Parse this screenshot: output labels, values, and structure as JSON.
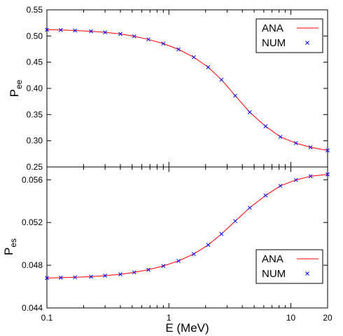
{
  "chart_data": [
    {
      "type": "line",
      "title": "",
      "xlabel": "",
      "ylabel": "P",
      "ylabel_sub": "ee",
      "xscale": "log",
      "xlim": [
        0.1,
        20
      ],
      "ylim": [
        0.25,
        0.55
      ],
      "yticks": [
        0.25,
        0.3,
        0.35,
        0.4,
        0.45,
        0.5,
        0.55
      ],
      "ytick_labels": [
        "0.25",
        "0.30",
        "0.35",
        "0.40",
        "0.45",
        "0.50",
        "0.55"
      ],
      "xticks": [
        0.1,
        1,
        10,
        20
      ],
      "xtick_labels": [],
      "grid": false,
      "legend_position": "top-right",
      "series": [
        {
          "name": "ANA",
          "style": "line",
          "color": "#ff0000",
          "x": [
            0.1,
            0.13,
            0.17,
            0.23,
            0.3,
            0.4,
            0.52,
            0.68,
            0.9,
            1.2,
            1.6,
            2.1,
            2.7,
            3.5,
            4.6,
            6.2,
            8.2,
            11,
            14.5,
            20
          ],
          "y": [
            0.512,
            0.5115,
            0.5105,
            0.509,
            0.507,
            0.504,
            0.4995,
            0.4935,
            0.4855,
            0.4745,
            0.4595,
            0.4405,
            0.4165,
            0.386,
            0.3545,
            0.3275,
            0.3075,
            0.2955,
            0.2875,
            0.2815
          ]
        },
        {
          "name": "NUM",
          "style": "markers",
          "marker": "x",
          "color": "#0000ff",
          "x": [
            0.1,
            0.13,
            0.17,
            0.23,
            0.3,
            0.4,
            0.52,
            0.68,
            0.9,
            1.2,
            1.6,
            2.1,
            2.7,
            3.5,
            4.6,
            6.2,
            8.2,
            11,
            14.5,
            20
          ],
          "y": [
            0.512,
            0.5115,
            0.5105,
            0.509,
            0.507,
            0.504,
            0.4995,
            0.4935,
            0.4855,
            0.4745,
            0.4595,
            0.4405,
            0.4165,
            0.386,
            0.3545,
            0.3275,
            0.3075,
            0.2955,
            0.2875,
            0.2815
          ]
        }
      ]
    },
    {
      "type": "line",
      "title": "",
      "xlabel": "E (MeV)",
      "ylabel": "P",
      "ylabel_sub": "es",
      "xscale": "log",
      "xlim": [
        0.1,
        20
      ],
      "ylim": [
        0.044,
        0.0572
      ],
      "yticks": [
        0.044,
        0.048,
        0.052,
        0.056
      ],
      "ytick_labels": [
        "0.044",
        "0.048",
        "0.052",
        "0.056"
      ],
      "xticks": [
        0.1,
        1,
        10,
        20
      ],
      "xtick_labels": [
        "0.1",
        "1",
        "10",
        "20"
      ],
      "grid": false,
      "legend_position": "bottom-right",
      "series": [
        {
          "name": "ANA",
          "style": "line",
          "color": "#ff0000",
          "x": [
            0.1,
            0.13,
            0.17,
            0.23,
            0.3,
            0.4,
            0.52,
            0.68,
            0.9,
            1.2,
            1.6,
            2.1,
            2.7,
            3.5,
            4.6,
            6.2,
            8.2,
            11,
            14.5,
            20
          ],
          "y": [
            0.0468,
            0.04683,
            0.04687,
            0.04693,
            0.04702,
            0.04715,
            0.04733,
            0.04758,
            0.04793,
            0.0484,
            0.04905,
            0.0499,
            0.05093,
            0.05213,
            0.05338,
            0.05453,
            0.05543,
            0.05598,
            0.05633,
            0.0565
          ]
        },
        {
          "name": "NUM",
          "style": "markers",
          "marker": "x",
          "color": "#0000ff",
          "x": [
            0.1,
            0.13,
            0.17,
            0.23,
            0.3,
            0.4,
            0.52,
            0.68,
            0.9,
            1.2,
            1.6,
            2.1,
            2.7,
            3.5,
            4.6,
            6.2,
            8.2,
            11,
            14.5,
            20
          ],
          "y": [
            0.0468,
            0.04683,
            0.04687,
            0.04693,
            0.04702,
            0.04715,
            0.04733,
            0.04758,
            0.04793,
            0.0484,
            0.04905,
            0.0499,
            0.05093,
            0.05213,
            0.05338,
            0.05453,
            0.05543,
            0.05598,
            0.05633,
            0.0565
          ]
        }
      ]
    }
  ]
}
